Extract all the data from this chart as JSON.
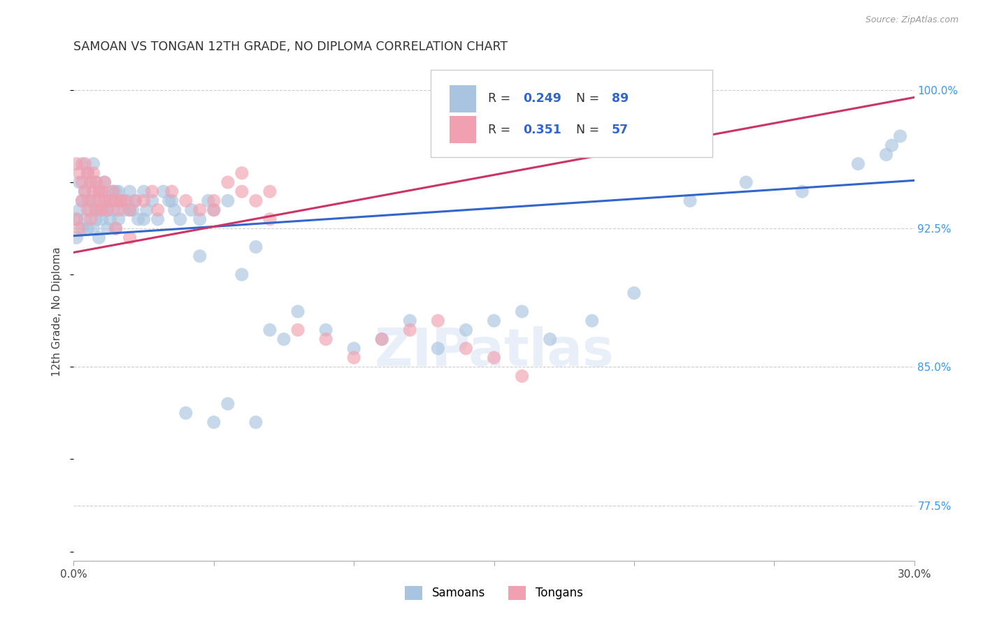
{
  "title": "SAMOAN VS TONGAN 12TH GRADE, NO DIPLOMA CORRELATION CHART",
  "source": "Source: ZipAtlas.com",
  "ylabel": "12th Grade, No Diploma",
  "yticks": [
    77.5,
    85.0,
    92.5,
    100.0
  ],
  "ytick_labels": [
    "77.5%",
    "85.0%",
    "92.5%",
    "100.0%"
  ],
  "xmin": 0.0,
  "xmax": 0.3,
  "ymin": 0.745,
  "ymax": 1.015,
  "samoans_R": 0.249,
  "samoans_N": 89,
  "tongans_R": 0.351,
  "tongans_N": 57,
  "samoan_color": "#a8c4e0",
  "tongan_color": "#f0a0b0",
  "samoan_line_color": "#3366cc",
  "tongan_line_color": "#cc3366",
  "background_color": "#ffffff",
  "title_fontsize": 12.5,
  "watermark_text": "ZIPatlas",
  "legend_label_samoan": "Samoans",
  "legend_label_tongan": "Tongans",
  "samoan_x": [
    0.001,
    0.001,
    0.002,
    0.002,
    0.003,
    0.003,
    0.003,
    0.004,
    0.004,
    0.005,
    0.005,
    0.005,
    0.006,
    0.006,
    0.007,
    0.007,
    0.007,
    0.008,
    0.008,
    0.008,
    0.009,
    0.009,
    0.01,
    0.01,
    0.01,
    0.011,
    0.011,
    0.012,
    0.012,
    0.013,
    0.013,
    0.014,
    0.014,
    0.015,
    0.015,
    0.016,
    0.016,
    0.017,
    0.018,
    0.019,
    0.02,
    0.021,
    0.022,
    0.023,
    0.025,
    0.026,
    0.028,
    0.03,
    0.032,
    0.034,
    0.036,
    0.038,
    0.04,
    0.042,
    0.045,
    0.048,
    0.05,
    0.055,
    0.06,
    0.065,
    0.07,
    0.075,
    0.08,
    0.09,
    0.1,
    0.11,
    0.12,
    0.13,
    0.14,
    0.15,
    0.16,
    0.17,
    0.185,
    0.2,
    0.22,
    0.24,
    0.26,
    0.28,
    0.29,
    0.292,
    0.295,
    0.05,
    0.055,
    0.065,
    0.045,
    0.035,
    0.015,
    0.025,
    0.02
  ],
  "samoan_y": [
    0.93,
    0.92,
    0.935,
    0.95,
    0.94,
    0.96,
    0.925,
    0.945,
    0.93,
    0.955,
    0.94,
    0.925,
    0.935,
    0.95,
    0.94,
    0.925,
    0.96,
    0.935,
    0.95,
    0.93,
    0.945,
    0.92,
    0.935,
    0.945,
    0.93,
    0.94,
    0.95,
    0.935,
    0.925,
    0.94,
    0.93,
    0.945,
    0.935,
    0.94,
    0.925,
    0.93,
    0.945,
    0.94,
    0.935,
    0.94,
    0.945,
    0.935,
    0.94,
    0.93,
    0.945,
    0.935,
    0.94,
    0.93,
    0.945,
    0.94,
    0.935,
    0.93,
    0.825,
    0.935,
    0.93,
    0.94,
    0.935,
    0.94,
    0.9,
    0.915,
    0.87,
    0.865,
    0.88,
    0.87,
    0.86,
    0.865,
    0.875,
    0.86,
    0.87,
    0.875,
    0.88,
    0.865,
    0.875,
    0.89,
    0.94,
    0.95,
    0.945,
    0.96,
    0.965,
    0.97,
    0.975,
    0.82,
    0.83,
    0.82,
    0.91,
    0.94,
    0.945,
    0.93,
    0.935
  ],
  "tongan_x": [
    0.001,
    0.001,
    0.002,
    0.002,
    0.003,
    0.003,
    0.004,
    0.004,
    0.005,
    0.005,
    0.006,
    0.006,
    0.006,
    0.007,
    0.007,
    0.008,
    0.008,
    0.009,
    0.009,
    0.01,
    0.01,
    0.011,
    0.011,
    0.012,
    0.013,
    0.014,
    0.015,
    0.016,
    0.017,
    0.018,
    0.02,
    0.022,
    0.025,
    0.028,
    0.03,
    0.035,
    0.04,
    0.045,
    0.05,
    0.055,
    0.06,
    0.065,
    0.07,
    0.08,
    0.09,
    0.1,
    0.11,
    0.12,
    0.13,
    0.14,
    0.15,
    0.16,
    0.05,
    0.06,
    0.07,
    0.015,
    0.02
  ],
  "tongan_y": [
    0.93,
    0.96,
    0.925,
    0.955,
    0.94,
    0.95,
    0.945,
    0.96,
    0.935,
    0.955,
    0.94,
    0.95,
    0.93,
    0.945,
    0.955,
    0.935,
    0.95,
    0.94,
    0.945,
    0.935,
    0.945,
    0.94,
    0.95,
    0.935,
    0.94,
    0.945,
    0.94,
    0.935,
    0.94,
    0.94,
    0.935,
    0.94,
    0.94,
    0.945,
    0.935,
    0.945,
    0.94,
    0.935,
    0.94,
    0.95,
    0.955,
    0.94,
    0.945,
    0.87,
    0.865,
    0.855,
    0.865,
    0.87,
    0.875,
    0.86,
    0.855,
    0.845,
    0.935,
    0.945,
    0.93,
    0.925,
    0.92
  ]
}
